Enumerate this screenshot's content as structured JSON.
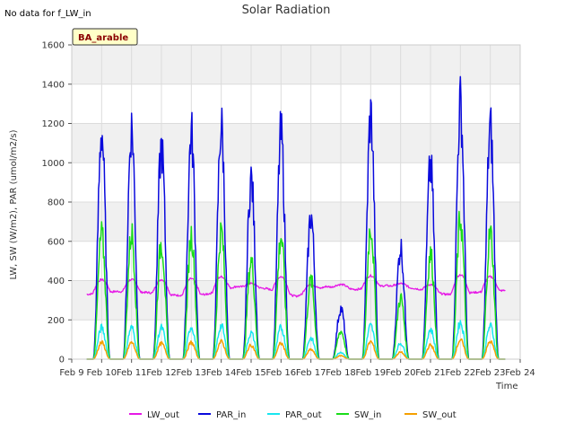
{
  "no_data_note": "No data for f_LW_in",
  "badge_label": "BA_arable",
  "chart_data": {
    "type": "line",
    "title": "Solar Radiation",
    "xlabel": "Time",
    "ylabel": "LW, SW (W/m2), PAR (umol/m2/s)",
    "ylim": [
      0,
      1600
    ],
    "yticks": [
      0,
      200,
      400,
      600,
      800,
      1000,
      1200,
      1400,
      1600
    ],
    "xlim": [
      9,
      24
    ],
    "xticks": [
      9,
      10,
      11,
      12,
      13,
      14,
      15,
      16,
      17,
      18,
      19,
      20,
      21,
      22,
      23,
      24
    ],
    "xtick_labels": [
      "Feb 9",
      "Feb 10",
      "Feb 11",
      "Feb 12",
      "Feb 13",
      "Feb 14",
      "Feb 15",
      "Feb 16",
      "Feb 17",
      "Feb 18",
      "Feb 19",
      "Feb 20",
      "Feb 21",
      "Feb 22",
      "Feb 23",
      "Feb 24"
    ],
    "grid": true,
    "background_bands": "alternating light gray",
    "legend_position": "bottom",
    "daily_peaks": {
      "days": [
        10,
        11,
        12,
        13,
        14,
        15,
        16,
        17,
        18,
        19,
        20,
        21,
        22,
        23
      ],
      "PAR_in": [
        1300,
        1320,
        1210,
        1290,
        1330,
        1030,
        1280,
        820,
        290,
        1390,
        640,
        1100,
        1460,
        1320
      ],
      "PAR_out": [
        180,
        180,
        180,
        185,
        190,
        150,
        180,
        120,
        40,
        190,
        90,
        170,
        210,
        190
      ],
      "SW_in": [
        710,
        720,
        665,
        710,
        730,
        560,
        700,
        450,
        160,
        760,
        350,
        600,
        800,
        720
      ],
      "SW_out": [
        95,
        95,
        90,
        95,
        100,
        80,
        90,
        55,
        20,
        100,
        40,
        80,
        110,
        100
      ],
      "LW_out_day": [
        405,
        405,
        405,
        410,
        420,
        385,
        420,
        380,
        380,
        425,
        385,
        380,
        430,
        420
      ]
    },
    "LW_out_night": [
      330,
      345,
      340,
      325,
      330,
      370,
      360,
      320,
      370,
      355,
      375,
      360,
      330,
      340,
      350
    ],
    "series": [
      {
        "name": "LW_out",
        "color": "#e619e6"
      },
      {
        "name": "PAR_in",
        "color": "#0a0adc"
      },
      {
        "name": "PAR_out",
        "color": "#19e6f0"
      },
      {
        "name": "SW_in",
        "color": "#19dc19"
      },
      {
        "name": "SW_out",
        "color": "#f5a000"
      }
    ]
  }
}
